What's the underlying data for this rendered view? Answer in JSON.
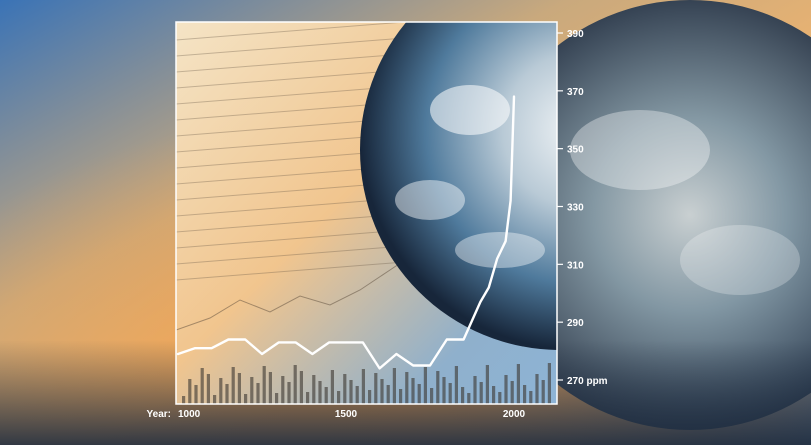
{
  "chart_data": {
    "type": "line",
    "title": "",
    "xlabel": "Year:",
    "ylabel": "",
    "y_unit": "ppm",
    "xlim": [
      1000,
      2100
    ],
    "ylim": [
      265,
      395
    ],
    "x_ticks": [
      1000,
      1500,
      2000
    ],
    "y_ticks": [
      270,
      290,
      310,
      330,
      350,
      370,
      390
    ],
    "grid": false,
    "series": [
      {
        "x": [
          1000,
          1050,
          1100,
          1150,
          1200,
          1250,
          1300,
          1350,
          1400,
          1450,
          1500,
          1550,
          1600,
          1650,
          1700,
          1750,
          1800,
          1850,
          1900,
          1925,
          1950,
          1975,
          1990,
          2000
        ],
        "y": [
          279,
          281,
          281,
          284,
          284,
          279,
          283,
          283,
          279,
          283,
          283,
          283,
          274,
          279,
          275,
          275,
          284,
          284,
          297,
          302,
          312,
          318,
          332,
          368
        ]
      }
    ]
  }
}
